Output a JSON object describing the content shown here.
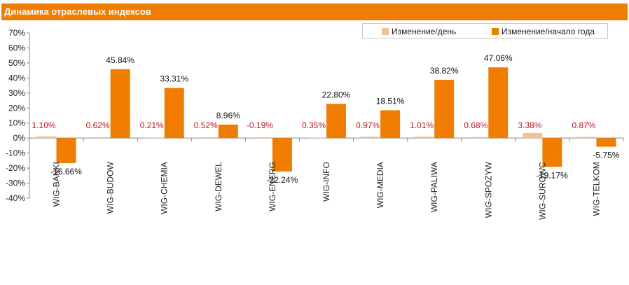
{
  "chart_data": {
    "type": "bar",
    "title": "Динамика отраслевых индексов",
    "categories": [
      "WIG-BANKI",
      "WIG-BUDOW",
      "WIG-CHEMIA",
      "WIG-DEWEL",
      "WIG-ENERG",
      "WIG-INFO",
      "WIG-MEDIA",
      "WIG-PALIWA",
      "WIG-SPOZYW",
      "WIG-SUROWC",
      "WIG-TELKOM"
    ],
    "series": [
      {
        "name": "Изменение/день",
        "color": "#f5c08e",
        "label_color": "#c0141e",
        "values": [
          1.1,
          0.62,
          0.21,
          0.52,
          -0.19,
          0.35,
          0.97,
          1.01,
          0.68,
          3.38,
          0.87
        ],
        "labels": [
          "1.10%",
          "0.62%",
          "0.21%",
          "0.52%",
          "-0.19%",
          "0.35%",
          "0.97%",
          "1.01%",
          "0.68%",
          "3.38%",
          "0.87%"
        ]
      },
      {
        "name": "Изменение/начало года",
        "color": "#f07d00",
        "label_color": "#111111",
        "values": [
          -16.66,
          45.84,
          33.31,
          8.96,
          -22.24,
          22.8,
          18.51,
          38.82,
          47.06,
          -19.17,
          -5.75
        ],
        "labels": [
          "-16.66%",
          "45.84%",
          "33.31%",
          "8.96%",
          "-22.24%",
          "22.80%",
          "18.51%",
          "38.82%",
          "47.06%",
          "-19.17%",
          "-5.75%"
        ]
      }
    ],
    "ylim": [
      -40,
      70
    ],
    "yticks": [
      70,
      60,
      50,
      40,
      30,
      20,
      10,
      0,
      -10,
      -20,
      -30,
      -40
    ],
    "ytick_labels": [
      "70%",
      "60%",
      "50%",
      "40%",
      "30%",
      "20%",
      "10%",
      "0%",
      "-10%",
      "-20%",
      "-30%",
      "-40%"
    ],
    "grid": false,
    "legend_position": "top-right"
  }
}
